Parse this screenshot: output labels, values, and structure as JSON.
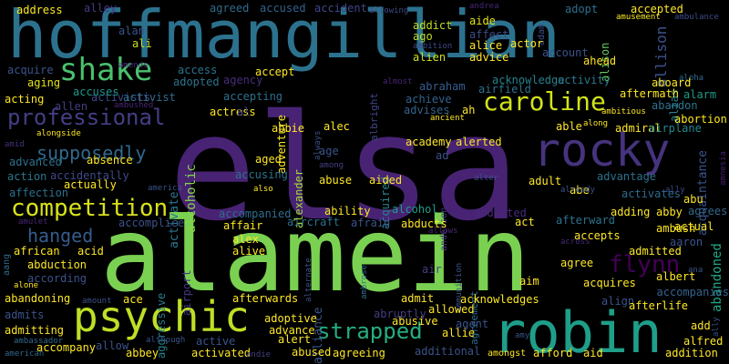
{
  "words": [
    {
      "text": "elsa",
      "color": "#482374"
    },
    {
      "text": "alamein",
      "color": "#7ad151"
    },
    {
      "text": "hoffmangillian",
      "color": "#2c728e"
    },
    {
      "text": "robin",
      "color": "#1f9e89"
    },
    {
      "text": "rocky",
      "color": "#46337e"
    },
    {
      "text": "psychic",
      "color": "#bddf26"
    },
    {
      "text": "shake",
      "color": "#4ac16d"
    },
    {
      "text": "caroline",
      "color": "#d2e21b"
    },
    {
      "text": "competition",
      "color": "#d8e219"
    },
    {
      "text": "professional",
      "color": "#433e85"
    },
    {
      "text": "strapped",
      "color": "#26ad81"
    },
    {
      "text": "flynn",
      "color": "#440154"
    },
    {
      "text": "supposedly",
      "color": "#31688e"
    },
    {
      "text": "hanged",
      "color": "#365c8d"
    },
    {
      "text": "acquaintance",
      "color": "#39568c"
    },
    {
      "text": "allison",
      "color": "#3b528b"
    },
    {
      "text": "alcoholic",
      "color": "#86d549"
    },
    {
      "text": "aggressive",
      "color": "#277f8e"
    },
    {
      "text": "airport",
      "color": "#443983"
    },
    {
      "text": "activate",
      "color": "#2a788e"
    },
    {
      "text": "activists",
      "color": "#3e4989"
    },
    {
      "text": "alliance",
      "color": "#39558c"
    },
    {
      "text": "agreement",
      "color": "#2d708e"
    },
    {
      "text": "abandoned",
      "color": "#22a884"
    },
    {
      "text": "alexander",
      "color": "#a5db36"
    },
    {
      "text": "acquired",
      "color": "#24868e"
    },
    {
      "text": "anderson",
      "color": "#453781"
    },
    {
      "text": "albright",
      "color": "#404688"
    },
    {
      "text": "alison",
      "color": "#65cb5e"
    },
    {
      "text": "alias",
      "color": "#25838e"
    },
    {
      "text": "address",
      "color": "#fde725"
    },
    {
      "text": "alley",
      "color": "#443a83"
    },
    {
      "text": "agreed",
      "color": "#2f6c8e"
    },
    {
      "text": "accused",
      "color": "#34618d"
    },
    {
      "text": "accident",
      "color": "#3f4788"
    },
    {
      "text": "allowing",
      "color": "#3e4a89"
    },
    {
      "text": "andrea",
      "color": "#482677"
    },
    {
      "text": "accepted",
      "color": "#fde725"
    },
    {
      "text": "ambulance",
      "color": "#3e4c8a"
    },
    {
      "text": "amusement",
      "color": "#fde725"
    },
    {
      "text": "adopt",
      "color": "#2e6e8e"
    },
    {
      "text": "adam",
      "color": "#3d4d8a"
    },
    {
      "text": "addict",
      "color": "#c0df25"
    },
    {
      "text": "aide",
      "color": "#e5e419"
    },
    {
      "text": "alan",
      "color": "#3b528b"
    },
    {
      "text": "ali",
      "color": "#c8e020"
    },
    {
      "text": "affect",
      "color": "#3e4a89"
    },
    {
      "text": "alice",
      "color": "#fde725"
    },
    {
      "text": "actor",
      "color": "#fde725"
    },
    {
      "text": "ago",
      "color": "#bddf26"
    },
    {
      "text": "ambition",
      "color": "#3e4989"
    },
    {
      "text": "amends",
      "color": "#482878"
    },
    {
      "text": "acquire",
      "color": "#3b528b"
    },
    {
      "text": "access",
      "color": "#2c738e"
    },
    {
      "text": "adopted",
      "color": "#2d718e"
    },
    {
      "text": "agency",
      "color": "#472d7b"
    },
    {
      "text": "accept",
      "color": "#fde725"
    },
    {
      "text": "alien",
      "color": "#cae11f"
    },
    {
      "text": "advice",
      "color": "#fde725"
    },
    {
      "text": "account",
      "color": "#3b528b"
    },
    {
      "text": "ahead",
      "color": "#fde725"
    },
    {
      "text": "alpha",
      "color": "#2f6b8e"
    },
    {
      "text": "almost",
      "color": "#482475"
    },
    {
      "text": "abraham",
      "color": "#365d8d"
    },
    {
      "text": "acknowledge",
      "color": "#26828e"
    },
    {
      "text": "activity",
      "color": "#2a788e"
    },
    {
      "text": "aftermath",
      "color": "#fde725"
    },
    {
      "text": "aboard",
      "color": "#fde725"
    },
    {
      "text": "alarm",
      "color": "#1f9a8a"
    },
    {
      "text": "aging",
      "color": "#e2e418"
    },
    {
      "text": "accuses",
      "color": "#1f968b"
    },
    {
      "text": "activist",
      "color": "#2f6c8e"
    },
    {
      "text": "accepting",
      "color": "#2d708e"
    },
    {
      "text": "actress",
      "color": "#fde725"
    },
    {
      "text": "al",
      "color": "#433e85"
    },
    {
      "text": "acting",
      "color": "#fde725"
    },
    {
      "text": "allen",
      "color": "#433d84"
    },
    {
      "text": "ambushed",
      "color": "#482576"
    },
    {
      "text": "achieve",
      "color": "#32648e"
    },
    {
      "text": "airfield",
      "color": "#2c728e"
    },
    {
      "text": "advises",
      "color": "#33638d"
    },
    {
      "text": "ah",
      "color": "#fde725"
    },
    {
      "text": "abbie",
      "color": "#fde725"
    },
    {
      "text": "ancient",
      "color": "#fde725"
    },
    {
      "text": "ambitious",
      "color": "#fde725"
    },
    {
      "text": "abandon",
      "color": "#2c738e"
    },
    {
      "text": "abortion",
      "color": "#fde725"
    },
    {
      "text": "along",
      "color": "#fde725"
    },
    {
      "text": "admiral",
      "color": "#fde725"
    },
    {
      "text": "airplane",
      "color": "#23898e"
    },
    {
      "text": "able",
      "color": "#fde725"
    },
    {
      "text": "adventure",
      "color": "#fde725"
    },
    {
      "text": "alec",
      "color": "#fde725"
    },
    {
      "text": "always",
      "color": "#3b528b"
    },
    {
      "text": "amid",
      "color": "#472f7d"
    },
    {
      "text": "alongside",
      "color": "#fde725"
    },
    {
      "text": "age",
      "color": "#3a548c"
    },
    {
      "text": "academy",
      "color": "#fde725"
    },
    {
      "text": "alerted",
      "color": "#fde725"
    },
    {
      "text": "ad",
      "color": "#3b528b"
    },
    {
      "text": "advanced",
      "color": "#2d718e"
    },
    {
      "text": "absence",
      "color": "#fde725"
    },
    {
      "text": "aged",
      "color": "#fde725"
    },
    {
      "text": "among",
      "color": "#433e85"
    },
    {
      "text": "alter",
      "color": "#3b528b"
    },
    {
      "text": "advantage",
      "color": "#2c728e"
    },
    {
      "text": "amnesia",
      "color": "#482071"
    },
    {
      "text": "action",
      "color": "#2a778e"
    },
    {
      "text": "accidentally",
      "color": "#3e4a89"
    },
    {
      "text": "accusing",
      "color": "#2c728e"
    },
    {
      "text": "actually",
      "color": "#fde725"
    },
    {
      "text": "abuse",
      "color": "#fde725"
    },
    {
      "text": "aided",
      "color": "#fde725"
    },
    {
      "text": "adult",
      "color": "#fde725"
    },
    {
      "text": "abe",
      "color": "#fde725"
    },
    {
      "text": "activates",
      "color": "#2f6b8e"
    },
    {
      "text": "abu",
      "color": "#fde725"
    },
    {
      "text": "america",
      "color": "#3b528b"
    },
    {
      "text": "affection",
      "color": "#2d708e"
    },
    {
      "text": "also",
      "color": "#fde725"
    },
    {
      "text": "already",
      "color": "#3b528b"
    },
    {
      "text": "ally",
      "color": "#3e4989"
    },
    {
      "text": "agrees",
      "color": "#31688e"
    },
    {
      "text": "ambush",
      "color": "#fde725"
    },
    {
      "text": "ability",
      "color": "#fde725"
    },
    {
      "text": "alcohol",
      "color": "#1f9e89"
    },
    {
      "text": "abducted",
      "color": "#482979"
    },
    {
      "text": "adding",
      "color": "#fde725"
    },
    {
      "text": "abby",
      "color": "#fde725"
    },
    {
      "text": "accomplice",
      "color": "#3b528b"
    },
    {
      "text": "accompanied",
      "color": "#2e6e8e"
    },
    {
      "text": "aircraft",
      "color": "#2c718e"
    },
    {
      "text": "afraid",
      "color": "#3b528b"
    },
    {
      "text": "abducts",
      "color": "#fde725"
    },
    {
      "text": "act",
      "color": "#fde725"
    },
    {
      "text": "afterward",
      "color": "#2c728e"
    },
    {
      "text": "actual",
      "color": "#fde725"
    },
    {
      "text": "amulet",
      "color": "#482576"
    },
    {
      "text": "african",
      "color": "#fde725"
    },
    {
      "text": "affair",
      "color": "#fde725"
    },
    {
      "text": "alex",
      "color": "#fde725"
    },
    {
      "text": "accepts",
      "color": "#fde725"
    },
    {
      "text": "aaron",
      "color": "#3b528b"
    },
    {
      "text": "admitted",
      "color": "#fde725"
    },
    {
      "text": "aang",
      "color": "#31688e"
    },
    {
      "text": "acid",
      "color": "#fde725"
    },
    {
      "text": "alive",
      "color": "#fde725"
    },
    {
      "text": "allows",
      "color": "#482878"
    },
    {
      "text": "across",
      "color": "#472c7a"
    },
    {
      "text": "agree",
      "color": "#fde725"
    },
    {
      "text": "albert",
      "color": "#fde725"
    },
    {
      "text": "abduction",
      "color": "#fde725"
    },
    {
      "text": "alternate",
      "color": "#3b528b"
    },
    {
      "text": "ammunition",
      "color": "#3b528b"
    },
    {
      "text": "air",
      "color": "#433e85"
    },
    {
      "text": "acquires",
      "color": "#fde725"
    },
    {
      "text": "accompanies",
      "color": "#33638d"
    },
    {
      "text": "ana",
      "color": "#3b528b"
    },
    {
      "text": "according",
      "color": "#3b528b"
    },
    {
      "text": "alone",
      "color": "#fde725"
    },
    {
      "text": "ace",
      "color": "#fde725"
    },
    {
      "text": "ambrose",
      "color": "#2e6f8e"
    },
    {
      "text": "aim",
      "color": "#fde725"
    },
    {
      "text": "align",
      "color": "#3b528b"
    },
    {
      "text": "abandoning",
      "color": "#fde725"
    },
    {
      "text": "amount",
      "color": "#3b528b"
    },
    {
      "text": "afterwards",
      "color": "#fde725"
    },
    {
      "text": "admit",
      "color": "#fde725"
    },
    {
      "text": "acknowledges",
      "color": "#fde725"
    },
    {
      "text": "afterlife",
      "color": "#fde725"
    },
    {
      "text": "admits",
      "color": "#3b528b"
    },
    {
      "text": "adoptive",
      "color": "#fde725"
    },
    {
      "text": "abruptly",
      "color": "#433e85"
    },
    {
      "text": "allowed",
      "color": "#fde725"
    },
    {
      "text": "ally",
      "color": "#3b528b"
    },
    {
      "text": "admitting",
      "color": "#fde725"
    },
    {
      "text": "ambassador",
      "color": "#31688e"
    },
    {
      "text": "advance",
      "color": "#fde725"
    },
    {
      "text": "abusive",
      "color": "#fde725"
    },
    {
      "text": "agent",
      "color": "#3b528b"
    },
    {
      "text": "allie",
      "color": "#fde725"
    },
    {
      "text": "add",
      "color": "#fde725"
    },
    {
      "text": "alfred",
      "color": "#fde725"
    },
    {
      "text": "accompany",
      "color": "#fde725"
    },
    {
      "text": "allow",
      "color": "#3b528b"
    },
    {
      "text": "abbey",
      "color": "#fde725"
    },
    {
      "text": "although",
      "color": "#3b528b"
    },
    {
      "text": "active",
      "color": "#3b528b"
    },
    {
      "text": "alert",
      "color": "#fde725"
    },
    {
      "text": "abused",
      "color": "#fde725"
    },
    {
      "text": "agreeing",
      "color": "#fde725"
    },
    {
      "text": "additional",
      "color": "#3b528b"
    },
    {
      "text": "afford",
      "color": "#fde725"
    },
    {
      "text": "aid",
      "color": "#fde725"
    },
    {
      "text": "addition",
      "color": "#fde725"
    },
    {
      "text": "american",
      "color": "#31688e"
    },
    {
      "text": "activated",
      "color": "#fde725"
    },
    {
      "text": "andie",
      "color": "#433e85"
    },
    {
      "text": "amongst",
      "color": "#fde725"
    },
    {
      "text": "amy",
      "color": "#3b528b"
    }
  ]
}
